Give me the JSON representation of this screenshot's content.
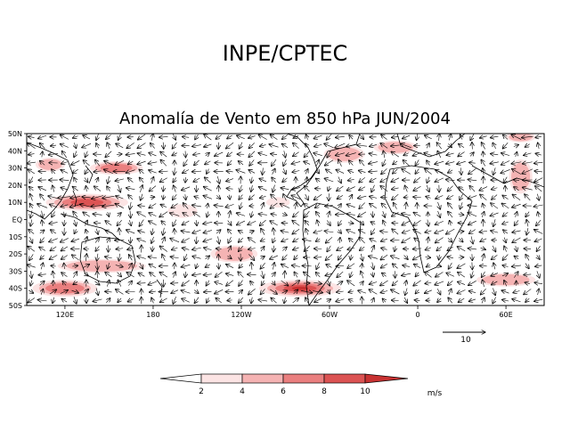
{
  "chart_data": {
    "type": "heatmap",
    "title": "INPE/CPTEC",
    "subtitle": "Anomalía de Vento em 850 hPa JUN/2004",
    "xlabel": "",
    "ylabel": "",
    "x_ticks": [
      {
        "label": "120E",
        "lon": 120
      },
      {
        "label": "180",
        "lon": 180
      },
      {
        "label": "120W",
        "lon": 240
      },
      {
        "label": "60W",
        "lon": 300
      },
      {
        "label": "0",
        "lon": 360
      },
      {
        "label": "60E",
        "lon": 420
      }
    ],
    "y_ticks": [
      {
        "label": "50N",
        "lat": 50
      },
      {
        "label": "40N",
        "lat": 40
      },
      {
        "label": "30N",
        "lat": 30
      },
      {
        "label": "20N",
        "lat": 20
      },
      {
        "label": "10N",
        "lat": 10
      },
      {
        "label": "EQ",
        "lat": 0
      },
      {
        "label": "10S",
        "lat": -10
      },
      {
        "label": "20S",
        "lat": -20
      },
      {
        "label": "30S",
        "lat": -30
      },
      {
        "label": "40S",
        "lat": -40
      },
      {
        "label": "50S",
        "lat": -50
      }
    ],
    "lon_range": [
      94,
      446
    ],
    "lat_range": [
      -50,
      50
    ],
    "reference_vector": {
      "label": "10",
      "magnitude": 10
    },
    "colorbar": {
      "levels": [
        "2",
        "4",
        "6",
        "8",
        "10"
      ],
      "colors": [
        "#ffffff",
        "#fce4e4",
        "#f5b3b3",
        "#ea7f7f",
        "#dc5353",
        "#c83232"
      ],
      "units": "m/s"
    },
    "anomaly_regions": [
      {
        "lon": 135,
        "lat": 10,
        "rlon": 28,
        "rlat": 5,
        "speed": 9
      },
      {
        "lon": 155,
        "lat": 30,
        "rlon": 18,
        "rlat": 4,
        "speed": 6
      },
      {
        "lon": 110,
        "lat": 32,
        "rlon": 10,
        "rlat": 4,
        "speed": 4
      },
      {
        "lon": 145,
        "lat": -27,
        "rlon": 30,
        "rlat": 4,
        "speed": 5
      },
      {
        "lon": 120,
        "lat": -40,
        "rlon": 22,
        "rlat": 5,
        "speed": 6
      },
      {
        "lon": 235,
        "lat": -20,
        "rlon": 16,
        "rlat": 5,
        "speed": 5
      },
      {
        "lon": 280,
        "lat": -40,
        "rlon": 28,
        "rlat": 5,
        "speed": 10
      },
      {
        "lon": 310,
        "lat": 38,
        "rlon": 14,
        "rlat": 5,
        "speed": 5
      },
      {
        "lon": 345,
        "lat": 42,
        "rlon": 15,
        "rlat": 4,
        "speed": 4
      },
      {
        "lon": 430,
        "lat": 25,
        "rlon": 8,
        "rlat": 10,
        "speed": 4
      },
      {
        "lon": 430,
        "lat": 48,
        "rlon": 10,
        "rlat": 3,
        "speed": 4
      },
      {
        "lon": 420,
        "lat": -35,
        "rlon": 20,
        "rlat": 4,
        "speed": 4
      },
      {
        "lon": 200,
        "lat": 5,
        "rlon": 10,
        "rlat": 4,
        "speed": 3
      },
      {
        "lon": 265,
        "lat": 10,
        "rlon": 8,
        "rlat": 3,
        "speed": 3
      }
    ]
  }
}
